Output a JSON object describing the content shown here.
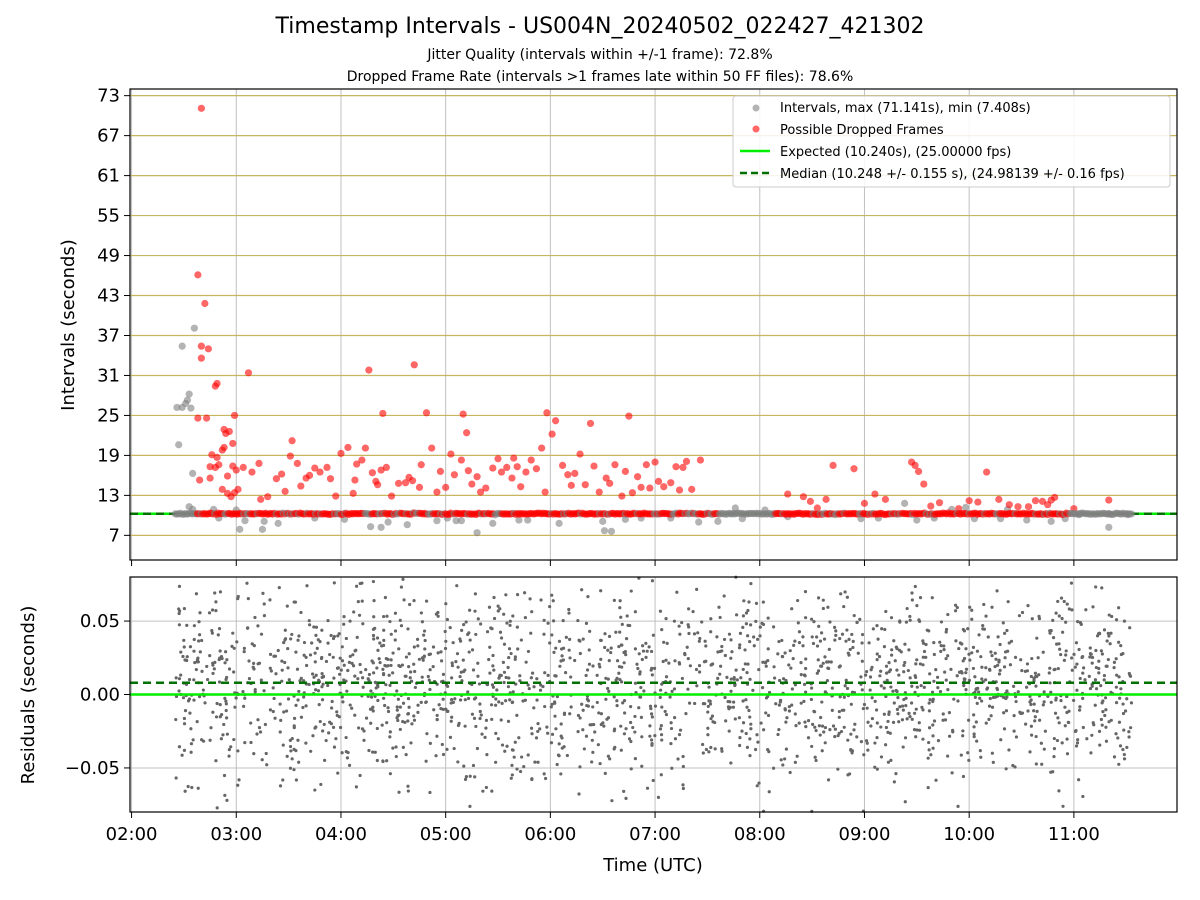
{
  "title": "Timestamp Intervals - US004N_20240502_022427_421302",
  "subtitle1": "Jitter Quality (intervals within +/-1 frame): 72.8%",
  "subtitle2": "Dropped Frame Rate (intervals >1 frames late within 50 FF files): 78.6%",
  "colors": {
    "intervals": "#808080",
    "dropped": "#ff0000",
    "expected": "#00ee00",
    "median": "#007000",
    "ygrid_top": "#c8b560",
    "grid": "#c0c0c0"
  },
  "chart_data": [
    {
      "type": "scatter",
      "panel": "top",
      "xlabel": "",
      "ylabel": "Intervals (seconds)",
      "xlim_hours": [
        1.985,
        11.985
      ],
      "ylim": [
        3.3,
        74.0
      ],
      "yticks": [
        7,
        13,
        19,
        25,
        31,
        37,
        43,
        49,
        55,
        61,
        67,
        73
      ],
      "grid": true,
      "legend_position": "top-right",
      "legend": [
        "Intervals, max (71.141s), min (7.408s)",
        "Possible Dropped Frames",
        "Expected (10.240s), (25.00000 fps)",
        "Median (10.248 +/- 0.155 s), (24.98139 +/- 0.16 fps)"
      ],
      "expected_line": 10.24,
      "median_line": 10.248,
      "baseline_band": {
        "x_start": "02:25",
        "x_end": "11:33",
        "value": 10.24
      },
      "series": [
        {
          "name": "Intervals, max (71.141s), min (7.408s)",
          "points": [
            [
              "02:26",
              26.2
            ],
            [
              "02:27",
              20.6
            ],
            [
              "02:29",
              35.4
            ],
            [
              "02:29",
              26.2
            ],
            [
              "02:31",
              26.8
            ],
            [
              "02:32",
              27.3
            ],
            [
              "02:33",
              28.2
            ],
            [
              "02:34",
              26.1
            ],
            [
              "02:36",
              38.1
            ],
            [
              "02:35",
              16.3
            ],
            [
              "02:33",
              11.3
            ],
            [
              "02:35",
              10.9
            ],
            [
              "02:47",
              10.9
            ],
            [
              "02:50",
              9.6
            ],
            [
              "03:00",
              10.8
            ],
            [
              "03:02",
              7.9
            ],
            [
              "03:05",
              9.2
            ],
            [
              "03:15",
              7.9
            ],
            [
              "03:16",
              9.1
            ],
            [
              "03:24",
              8.8
            ],
            [
              "03:45",
              9.6
            ],
            [
              "04:02",
              9.4
            ],
            [
              "04:17",
              8.3
            ],
            [
              "04:23",
              8.2
            ],
            [
              "04:27",
              9.0
            ],
            [
              "04:38",
              8.6
            ],
            [
              "04:55",
              9.2
            ],
            [
              "05:01",
              9.6
            ],
            [
              "05:06",
              9.2
            ],
            [
              "05:09",
              9.2
            ],
            [
              "05:18",
              7.4
            ],
            [
              "05:27",
              8.8
            ],
            [
              "05:42",
              9.3
            ],
            [
              "05:47",
              9.3
            ],
            [
              "06:05",
              8.8
            ],
            [
              "06:30",
              9.1
            ],
            [
              "06:31",
              7.7
            ],
            [
              "06:35",
              7.6
            ],
            [
              "06:43",
              9.4
            ],
            [
              "06:52",
              9.6
            ],
            [
              "07:09",
              9.6
            ],
            [
              "07:25",
              9.0
            ],
            [
              "07:36",
              9.1
            ],
            [
              "07:46",
              11.1
            ],
            [
              "07:50",
              9.5
            ],
            [
              "08:03",
              10.8
            ],
            [
              "08:16",
              9.8
            ],
            [
              "08:40",
              10.2
            ],
            [
              "08:58",
              9.5
            ],
            [
              "09:08",
              9.6
            ],
            [
              "09:23",
              11.8
            ],
            [
              "09:30",
              9.3
            ],
            [
              "09:40",
              9.6
            ],
            [
              "09:50",
              10.9
            ],
            [
              "09:58",
              11.2
            ],
            [
              "10:03",
              9.5
            ],
            [
              "10:18",
              9.5
            ],
            [
              "10:22",
              10.9
            ],
            [
              "10:33",
              9.3
            ],
            [
              "10:47",
              9.1
            ],
            [
              "10:55",
              9.5
            ],
            [
              "11:03",
              10.1
            ],
            [
              "11:20",
              10.2
            ],
            [
              "11:20",
              8.2
            ],
            [
              "11:31",
              10.1
            ]
          ]
        },
        {
          "name": "Possible Dropped Frames",
          "points": [
            [
              "02:40",
              71.1
            ],
            [
              "02:38",
              46.1
            ],
            [
              "02:42",
              41.8
            ],
            [
              "02:40",
              35.4
            ],
            [
              "02:44",
              35.0
            ],
            [
              "02:40",
              33.6
            ],
            [
              "02:48",
              29.4
            ],
            [
              "02:49",
              29.8
            ],
            [
              "02:38",
              24.6
            ],
            [
              "02:43",
              24.6
            ],
            [
              "02:53",
              22.9
            ],
            [
              "02:54",
              22.3
            ],
            [
              "02:56",
              22.6
            ],
            [
              "02:59",
              25.0
            ],
            [
              "03:07",
              31.4
            ],
            [
              "02:58",
              20.8
            ],
            [
              "02:53",
              20.2
            ],
            [
              "02:46",
              19.1
            ],
            [
              "02:49",
              18.7
            ],
            [
              "02:52",
              19.8
            ],
            [
              "02:45",
              17.3
            ],
            [
              "02:48",
              17.2
            ],
            [
              "02:50",
              17.6
            ],
            [
              "02:39",
              15.3
            ],
            [
              "02:45",
              15.6
            ],
            [
              "02:55",
              15.9
            ],
            [
              "02:58",
              17.4
            ],
            [
              "03:00",
              16.8
            ],
            [
              "03:04",
              17.2
            ],
            [
              "03:09",
              16.5
            ],
            [
              "03:13",
              17.8
            ],
            [
              "02:52",
              13.9
            ],
            [
              "02:55",
              13.3
            ],
            [
              "02:57",
              12.8
            ],
            [
              "02:59",
              13.4
            ],
            [
              "03:01",
              13.9
            ],
            [
              "03:14",
              12.4
            ],
            [
              "03:18",
              12.8
            ],
            [
              "03:23",
              15.5
            ],
            [
              "03:26",
              16.2
            ],
            [
              "03:28",
              13.6
            ],
            [
              "03:31",
              18.9
            ],
            [
              "03:32",
              21.2
            ],
            [
              "03:35",
              17.8
            ],
            [
              "03:37",
              14.4
            ],
            [
              "03:40",
              15.6
            ],
            [
              "03:42",
              16.0
            ],
            [
              "03:45",
              17.1
            ],
            [
              "03:48",
              16.5
            ],
            [
              "03:52",
              17.2
            ],
            [
              "03:54",
              15.5
            ],
            [
              "03:57",
              12.9
            ],
            [
              "04:00",
              19.3
            ],
            [
              "04:04",
              20.2
            ],
            [
              "04:07",
              13.3
            ],
            [
              "04:08",
              15.3
            ],
            [
              "04:09",
              17.7
            ],
            [
              "04:12",
              18.3
            ],
            [
              "04:14",
              20.1
            ],
            [
              "04:16",
              31.8
            ],
            [
              "04:18",
              16.4
            ],
            [
              "04:20",
              15.1
            ],
            [
              "04:21",
              14.6
            ],
            [
              "04:23",
              16.8
            ],
            [
              "04:24",
              25.3
            ],
            [
              "04:26",
              17.2
            ],
            [
              "04:29",
              12.9
            ],
            [
              "04:33",
              14.8
            ],
            [
              "04:37",
              14.9
            ],
            [
              "04:39",
              15.7
            ],
            [
              "04:41",
              15.2
            ],
            [
              "04:42",
              32.6
            ],
            [
              "04:45",
              14.2
            ],
            [
              "04:46",
              17.6
            ],
            [
              "04:49",
              25.4
            ],
            [
              "04:52",
              20.1
            ],
            [
              "04:55",
              13.5
            ],
            [
              "04:57",
              16.6
            ],
            [
              "05:00",
              14.2
            ],
            [
              "05:03",
              19.2
            ],
            [
              "05:05",
              16.1
            ],
            [
              "05:09",
              18.3
            ],
            [
              "05:10",
              25.2
            ],
            [
              "05:12",
              22.4
            ],
            [
              "05:13",
              16.7
            ],
            [
              "05:15",
              14.7
            ],
            [
              "05:18",
              15.8
            ],
            [
              "05:20",
              13.5
            ],
            [
              "05:23",
              14.1
            ],
            [
              "05:27",
              17.1
            ],
            [
              "05:30",
              18.5
            ],
            [
              "05:32",
              16.5
            ],
            [
              "05:35",
              17.2
            ],
            [
              "05:38",
              15.6
            ],
            [
              "05:39",
              18.6
            ],
            [
              "05:41",
              17.3
            ],
            [
              "05:43",
              14.3
            ],
            [
              "05:46",
              16.5
            ],
            [
              "05:49",
              18.3
            ],
            [
              "05:52",
              17.0
            ],
            [
              "05:55",
              20.1
            ],
            [
              "05:57",
              13.5
            ],
            [
              "05:58",
              25.4
            ],
            [
              "06:01",
              22.2
            ],
            [
              "06:03",
              24.2
            ],
            [
              "06:07",
              17.5
            ],
            [
              "06:10",
              16.1
            ],
            [
              "06:12",
              14.5
            ],
            [
              "06:14",
              16.3
            ],
            [
              "06:17",
              19.2
            ],
            [
              "06:20",
              14.6
            ],
            [
              "06:23",
              23.8
            ],
            [
              "06:25",
              17.4
            ],
            [
              "06:28",
              13.5
            ],
            [
              "06:32",
              15.6
            ],
            [
              "06:34",
              14.8
            ],
            [
              "06:37",
              17.6
            ],
            [
              "06:41",
              12.9
            ],
            [
              "06:43",
              16.6
            ],
            [
              "06:45",
              24.9
            ],
            [
              "06:47",
              13.4
            ],
            [
              "06:50",
              15.8
            ],
            [
              "06:52",
              14.2
            ],
            [
              "06:55",
              17.6
            ],
            [
              "06:57",
              14.1
            ],
            [
              "07:00",
              18.0
            ],
            [
              "07:02",
              15.1
            ],
            [
              "07:05",
              14.3
            ],
            [
              "07:09",
              14.9
            ],
            [
              "07:12",
              17.3
            ],
            [
              "07:14",
              13.8
            ],
            [
              "07:16",
              17.2
            ],
            [
              "07:18",
              18.1
            ],
            [
              "07:21",
              13.9
            ],
            [
              "07:26",
              18.3
            ],
            [
              "08:16",
              13.2
            ],
            [
              "08:25",
              12.8
            ],
            [
              "08:29",
              12.1
            ],
            [
              "08:33",
              11.1
            ],
            [
              "08:38",
              12.4
            ],
            [
              "08:42",
              17.5
            ],
            [
              "08:54",
              17.0
            ],
            [
              "09:00",
              11.8
            ],
            [
              "09:06",
              13.2
            ],
            [
              "09:12",
              12.4
            ],
            [
              "09:27",
              18.0
            ],
            [
              "09:29",
              17.5
            ],
            [
              "09:31",
              16.6
            ],
            [
              "09:34",
              14.7
            ],
            [
              "09:38",
              11.4
            ],
            [
              "09:43",
              11.9
            ],
            [
              "09:54",
              11.0
            ],
            [
              "10:00",
              12.2
            ],
            [
              "10:05",
              12.0
            ],
            [
              "10:10",
              16.5
            ],
            [
              "10:17",
              12.4
            ],
            [
              "10:23",
              11.6
            ],
            [
              "10:28",
              11.3
            ],
            [
              "10:34",
              11.3
            ],
            [
              "10:38",
              12.2
            ],
            [
              "10:42",
              12.1
            ],
            [
              "10:45",
              11.6
            ],
            [
              "10:47",
              12.3
            ],
            [
              "10:49",
              12.7
            ],
            [
              "11:00",
              11.0
            ],
            [
              "11:20",
              12.3
            ]
          ]
        }
      ]
    },
    {
      "type": "scatter",
      "panel": "bottom",
      "xlabel": "Time (UTC)",
      "ylabel": "Residuals (seconds)",
      "xlim_hours": [
        1.985,
        11.985
      ],
      "ylim": [
        -0.08,
        0.08
      ],
      "xticks": [
        "02:00",
        "03:00",
        "04:00",
        "05:00",
        "06:00",
        "07:00",
        "08:00",
        "09:00",
        "10:00",
        "11:00"
      ],
      "yticks": [
        0.05,
        0.0,
        -0.05
      ],
      "ytick_labels": [
        "0.05",
        "0.00",
        "−0.05"
      ],
      "grid": true,
      "expected_line": 0.0,
      "median_line": 0.008,
      "residual_spread_std": 0.033,
      "time_range": [
        "02:25",
        "11:33"
      ],
      "point_count": 2100
    }
  ]
}
